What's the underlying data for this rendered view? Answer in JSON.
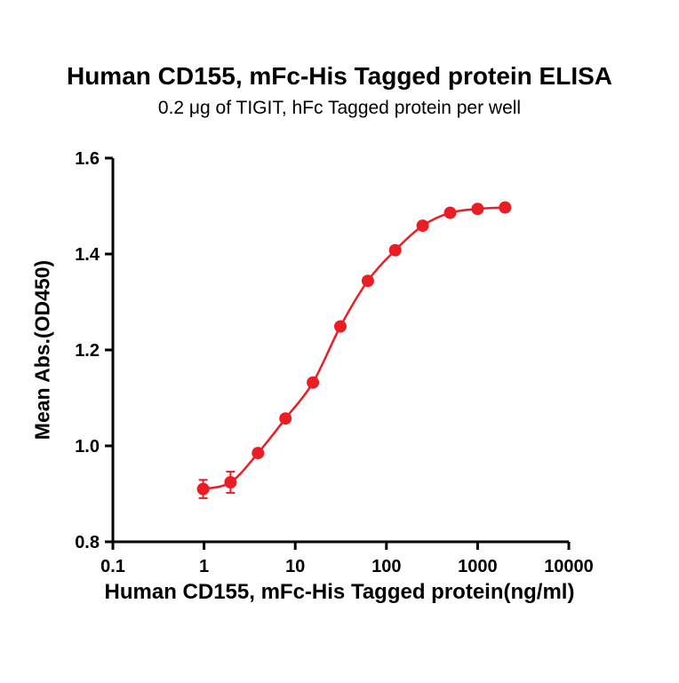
{
  "page": {
    "background": "#ffffff"
  },
  "chart_data": {
    "type": "line",
    "title": "Human CD155, mFc-His Tagged protein ELISA",
    "subtitle": "0.2 μg of TIGIT, hFc Tagged protein per well",
    "xlabel": "Human CD155, mFc-His Tagged protein(ng/ml)",
    "ylabel": "Mean Abs.(OD450)",
    "x_scale": "log10",
    "xlim": [
      0.1,
      10000
    ],
    "ylim": [
      0.8,
      1.6
    ],
    "x_ticks": [
      0.1,
      1,
      10,
      100,
      1000,
      10000
    ],
    "x_tick_labels": [
      "0.1",
      "1",
      "10",
      "100",
      "1000",
      "10000"
    ],
    "y_ticks": [
      0.8,
      1.0,
      1.2,
      1.4,
      1.6
    ],
    "y_tick_labels": [
      "0.8",
      "1.0",
      "1.2",
      "1.4",
      "1.6"
    ],
    "grid": false,
    "legend": false,
    "series": [
      {
        "name": "Human CD155, mFc-His Tagged protein",
        "color": "#ec1c24",
        "marker": "circle",
        "x": [
          0.977,
          1.953,
          3.906,
          7.813,
          15.625,
          31.25,
          62.5,
          125,
          250,
          500,
          1000,
          2000
        ],
        "y": [
          0.91,
          0.924,
          0.985,
          1.057,
          1.132,
          1.249,
          1.344,
          1.408,
          1.459,
          1.486,
          1.494,
          1.497
        ],
        "y_err": [
          0.019,
          0.022,
          0.008,
          0.006,
          0.005,
          0.004,
          0.004,
          0.004,
          0.003,
          0.003,
          0.003,
          0.003
        ]
      }
    ],
    "axis_color": "#000000"
  }
}
